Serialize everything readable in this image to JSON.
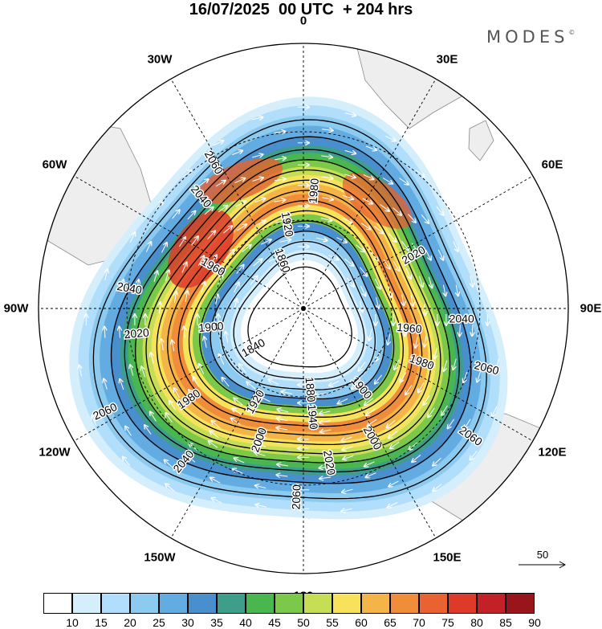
{
  "title": "16/07/2025  00 UTC  + 204 hrs",
  "brand": "MODES",
  "brand_mark": "©",
  "longitude_labels": [
    {
      "text": "0",
      "lon": 0
    },
    {
      "text": "30E",
      "lon": 30
    },
    {
      "text": "60E",
      "lon": 60
    },
    {
      "text": "90E",
      "lon": 90
    },
    {
      "text": "120E",
      "lon": 120
    },
    {
      "text": "150E",
      "lon": 150
    },
    {
      "text": "180",
      "lon": 180
    },
    {
      "text": "150W",
      "lon": -150
    },
    {
      "text": "120W",
      "lon": -120
    },
    {
      "text": "90W",
      "lon": -90
    },
    {
      "text": "60W",
      "lon": -60
    },
    {
      "text": "30W",
      "lon": -30
    }
  ],
  "contour_labels": [
    {
      "text": "2060",
      "lon": -30,
      "rank": 0
    },
    {
      "text": "2040",
      "lon": -40,
      "rank": 1
    },
    {
      "text": "1980",
      "lon": 5,
      "rank": 6
    },
    {
      "text": "1920",
      "lon": -10,
      "rank": 9
    },
    {
      "text": "1960",
      "lon": -60,
      "rank": 7
    },
    {
      "text": "1860",
      "lon": -20,
      "rank": 12
    },
    {
      "text": "1840",
      "lon": -120,
      "rank": 13
    },
    {
      "text": "2040",
      "lon": -80,
      "rank": 1
    },
    {
      "text": "2020",
      "lon": -95,
      "rank": 3
    },
    {
      "text": "1900",
      "lon": -95,
      "rank": 10
    },
    {
      "text": "2060",
      "lon": -115,
      "rank": 0
    },
    {
      "text": "1980",
      "lon": -125,
      "rank": 6
    },
    {
      "text": "1920",
      "lon": -150,
      "rank": 9
    },
    {
      "text": "1880",
      "lon": 175,
      "rank": 11
    },
    {
      "text": "1900",
      "lon": 140,
      "rank": 10
    },
    {
      "text": "1940",
      "lon": 175,
      "rank": 8
    },
    {
      "text": "2000",
      "lon": -160,
      "rank": 5
    },
    {
      "text": "2040",
      "lon": -140,
      "rank": 1
    },
    {
      "text": "2020",
      "lon": 170,
      "rank": 3
    },
    {
      "text": "2000",
      "lon": 150,
      "rank": 5
    },
    {
      "text": "2060",
      "lon": -178,
      "rank": 0
    },
    {
      "text": "2060",
      "lon": 125,
      "rank": 0
    },
    {
      "text": "1980",
      "lon": 110,
      "rank": 6
    },
    {
      "text": "1960",
      "lon": 95,
      "rank": 7
    },
    {
      "text": "2040",
      "lon": 90,
      "rank": 1
    },
    {
      "text": "2060",
      "lon": 105,
      "rank": 0
    },
    {
      "text": "2020",
      "lon": 60,
      "rank": 3
    }
  ],
  "colorbar": {
    "ticks": [
      "10",
      "15",
      "20",
      "25",
      "30",
      "35",
      "40",
      "45",
      "50",
      "55",
      "60",
      "65",
      "70",
      "75",
      "80",
      "85",
      "90"
    ],
    "colors": [
      "#ffffff",
      "#d4eefb",
      "#b1defa",
      "#8ccaf0",
      "#62ace2",
      "#4a8fcd",
      "#3f9e8b",
      "#4ab650",
      "#7cc848",
      "#c6de55",
      "#f7e35b",
      "#f5b447",
      "#f08d3a",
      "#e9622f",
      "#dd3a2a",
      "#c22227",
      "#98161b"
    ]
  },
  "vector_reference": {
    "label": "50"
  }
}
